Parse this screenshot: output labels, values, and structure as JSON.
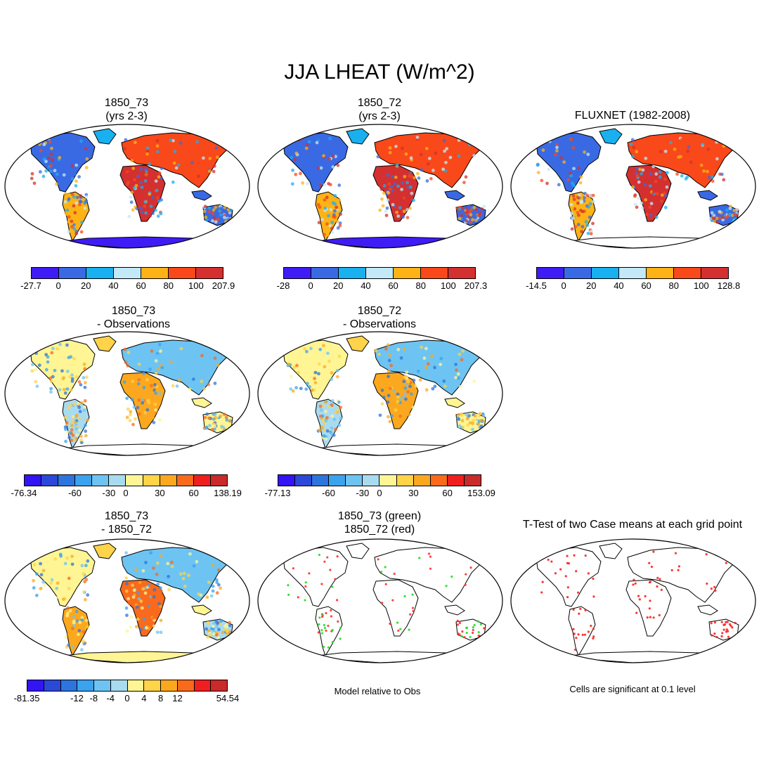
{
  "title": "JJA LHEAT (W/m^2)",
  "panels": [
    {
      "id": "p1",
      "title_line1": "1850_73",
      "title_line2": "(yrs 2-3)",
      "type": "field",
      "colorbar": {
        "colors": [
          "#3f1cf5",
          "#3a6ae3",
          "#19b0f0",
          "#c3e9f8",
          "#fdb316",
          "#f9481a",
          "#d43030"
        ],
        "labels": [
          "-27.7",
          "0",
          "20",
          "40",
          "60",
          "80",
          "100",
          "207.9"
        ]
      }
    },
    {
      "id": "p2",
      "title_line1": "1850_72",
      "title_line2": "(yrs 2-3)",
      "type": "field",
      "colorbar": {
        "colors": [
          "#3f1cf5",
          "#3a6ae3",
          "#19b0f0",
          "#c3e9f8",
          "#fdb316",
          "#f9481a",
          "#d43030"
        ],
        "labels": [
          "-28",
          "0",
          "20",
          "40",
          "60",
          "80",
          "100",
          "207.3"
        ]
      }
    },
    {
      "id": "p3",
      "title_line1": "FLUXNET (1982-2008)",
      "title_line2": "",
      "type": "field",
      "colorbar": {
        "colors": [
          "#3f1cf5",
          "#3a6ae3",
          "#19b0f0",
          "#c3e9f8",
          "#fdb316",
          "#f9481a",
          "#d43030"
        ],
        "labels": [
          "-14.5",
          "0",
          "20",
          "40",
          "60",
          "80",
          "100",
          "128.8"
        ]
      }
    },
    {
      "id": "p4",
      "title_line1": "1850_73",
      "title_line2": "- Observations",
      "type": "diff",
      "colorbar": {
        "colors": [
          "#3314f2",
          "#2b48d8",
          "#2d74de",
          "#3ba2ee",
          "#6dc4f2",
          "#a9dbf0",
          "#fff594",
          "#ffd34a",
          "#fca81f",
          "#f96a1c",
          "#f01f1f",
          "#c92a2a"
        ],
        "labels": [
          "-76.34",
          "-60",
          "-30",
          "0",
          "30",
          "60",
          "138.19"
        ]
      }
    },
    {
      "id": "p5",
      "title_line1": "1850_72",
      "title_line2": "- Observations",
      "type": "diff",
      "colorbar": {
        "colors": [
          "#3314f2",
          "#2b48d8",
          "#2d74de",
          "#3ba2ee",
          "#6dc4f2",
          "#a9dbf0",
          "#fff594",
          "#ffd34a",
          "#fca81f",
          "#f96a1c",
          "#f01f1f",
          "#c92a2a"
        ],
        "labels": [
          "-77.13",
          "-60",
          "-30",
          "0",
          "30",
          "60",
          "153.09"
        ]
      }
    },
    {
      "id": "p7",
      "title_line1": "1850_73",
      "title_line2": "- 1850_72",
      "type": "diff2",
      "colorbar": {
        "colors": [
          "#3314f2",
          "#2b48d8",
          "#2d74de",
          "#3ba2ee",
          "#6dc4f2",
          "#a9dbf0",
          "#fff594",
          "#ffd34a",
          "#fca81f",
          "#f96a1c",
          "#f01f1f",
          "#c92a2a"
        ],
        "labels": [
          "-81.35",
          "-12",
          "-8",
          "-4",
          "0",
          "4",
          "8",
          "12",
          "54.54"
        ]
      }
    },
    {
      "id": "p8",
      "title_line1": "1850_73 (green)",
      "title_line2": "1850_72 (red)",
      "type": "points",
      "caption": "Model relative to Obs"
    },
    {
      "id": "p9",
      "title_line1": "T-Test of two Case means at each grid point",
      "title_line2": "",
      "type": "points",
      "caption": "Cells are significant at 0.1 level"
    }
  ]
}
